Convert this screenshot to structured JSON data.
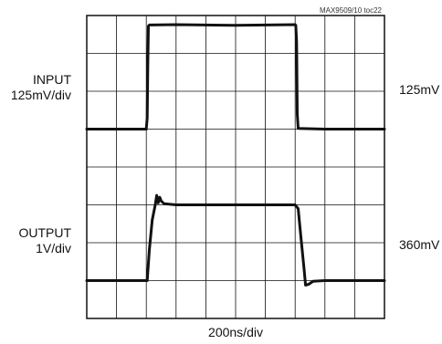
{
  "chart_data": {
    "type": "line",
    "title": "",
    "figure_id": "MAX9509/10 toc22",
    "xlabel": "200ns/div",
    "divisions": {
      "x": 10,
      "y": 8
    },
    "grid": true,
    "series": [
      {
        "name": "INPUT",
        "label": "INPUT",
        "scale": "125mV/div",
        "marker": "125mV",
        "color": "#111111",
        "points": [
          [
            0,
            5.0
          ],
          [
            2.0,
            5.0
          ],
          [
            2.0,
            5.01
          ],
          [
            2.03,
            5.3
          ],
          [
            2.05,
            6.6
          ],
          [
            2.07,
            7.72
          ],
          [
            2.1,
            7.75
          ],
          [
            3.0,
            7.76
          ],
          [
            5.0,
            7.74
          ],
          [
            7.0,
            7.76
          ],
          [
            7.02,
            7.74
          ],
          [
            7.05,
            7.3
          ],
          [
            7.07,
            5.4
          ],
          [
            7.1,
            5.02
          ],
          [
            8.0,
            5.0
          ],
          [
            10,
            5.0
          ]
        ]
      },
      {
        "name": "OUTPUT",
        "label": "OUTPUT",
        "scale": "1V/div",
        "marker": "360mV",
        "color": "#111111",
        "points": [
          [
            0,
            1.0
          ],
          [
            1.98,
            1.0
          ],
          [
            2.03,
            1.0
          ],
          [
            2.1,
            1.8
          ],
          [
            2.2,
            2.6
          ],
          [
            2.3,
            3.0
          ],
          [
            2.35,
            3.25
          ],
          [
            2.4,
            3.05
          ],
          [
            2.45,
            3.2
          ],
          [
            2.5,
            3.1
          ],
          [
            2.6,
            3.03
          ],
          [
            3.0,
            3.0
          ],
          [
            5.0,
            3.0
          ],
          [
            7.0,
            3.0
          ],
          [
            7.1,
            2.9
          ],
          [
            7.2,
            2.1
          ],
          [
            7.3,
            1.3
          ],
          [
            7.35,
            0.88
          ],
          [
            7.45,
            0.9
          ],
          [
            7.6,
            0.98
          ],
          [
            8.0,
            1.0
          ],
          [
            10,
            1.0
          ]
        ]
      }
    ]
  }
}
